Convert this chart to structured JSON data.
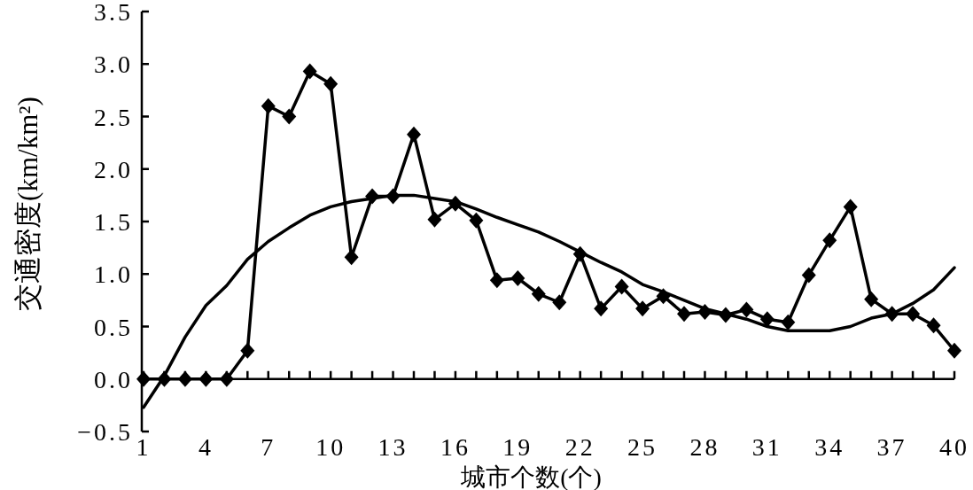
{
  "chart_data": {
    "type": "line",
    "xlabel": "城市个数(个)",
    "ylabel": "交通密度(km/km²)",
    "x": [
      1,
      2,
      3,
      4,
      5,
      6,
      7,
      8,
      9,
      10,
      11,
      12,
      13,
      14,
      15,
      16,
      17,
      18,
      19,
      20,
      21,
      22,
      23,
      24,
      25,
      26,
      27,
      28,
      29,
      30,
      31,
      32,
      33,
      34,
      35,
      36,
      37,
      38,
      39,
      40
    ],
    "xlim": [
      1,
      40
    ],
    "xticks": [
      1,
      {
        "value": 2,
        "label": null
      },
      {
        "value": 3,
        "label": null
      },
      4,
      {
        "value": 5,
        "label": null
      },
      {
        "value": 6,
        "label": null
      },
      7,
      {
        "value": 8,
        "label": null
      },
      {
        "value": 9,
        "label": null
      },
      10,
      {
        "value": 11,
        "label": null
      },
      {
        "value": 12,
        "label": null
      },
      13,
      {
        "value": 14,
        "label": null
      },
      {
        "value": 15,
        "label": null
      },
      16,
      {
        "value": 17,
        "label": null
      },
      {
        "value": 18,
        "label": null
      },
      19,
      {
        "value": 20,
        "label": null
      },
      {
        "value": 21,
        "label": null
      },
      22,
      {
        "value": 23,
        "label": null
      },
      {
        "value": 24,
        "label": null
      },
      25,
      {
        "value": 26,
        "label": null
      },
      {
        "value": 27,
        "label": null
      },
      28,
      {
        "value": 29,
        "label": null
      },
      {
        "value": 30,
        "label": null
      },
      31,
      {
        "value": 32,
        "label": null
      },
      {
        "value": 33,
        "label": null
      },
      34,
      {
        "value": 35,
        "label": null
      },
      {
        "value": 36,
        "label": null
      },
      37,
      {
        "value": 38,
        "label": null
      },
      {
        "value": 39,
        "label": null
      },
      40
    ],
    "ylim": [
      -0.5,
      3.5
    ],
    "yticks": [
      {
        "value": -0.5,
        "label": "−0.5"
      },
      {
        "value": 0,
        "label": "0.0"
      },
      0.5,
      {
        "value": 1,
        "label": "1.0"
      },
      1.5,
      {
        "value": 2,
        "label": "2.0"
      },
      2.5,
      {
        "value": 3,
        "label": "3.0"
      },
      3.5
    ],
    "grid": false,
    "line_style": "solid",
    "series": [
      {
        "color": "#000000",
        "marker": "diamond",
        "values": [
          0,
          0,
          0,
          0,
          0,
          0.27,
          2.6,
          2.5,
          2.93,
          2.81,
          1.16,
          1.74,
          1.74,
          2.33,
          1.52,
          1.67,
          1.51,
          0.94,
          0.96,
          0.81,
          0.73,
          1.19,
          0.67,
          0.88,
          0.67,
          0.79,
          0.62,
          0.64,
          0.61,
          0.66,
          0.57,
          0.54,
          0.99,
          1.32,
          1.64,
          0.76,
          0.62,
          0.62,
          0.51,
          0.27
        ]
      },
      {
        "color": "#000000",
        "marker": "none",
        "values": [
          -0.27,
          0.03,
          0.4,
          0.7,
          0.89,
          1.14,
          1.31,
          1.44,
          1.56,
          1.64,
          1.69,
          1.72,
          1.75,
          1.75,
          1.72,
          1.69,
          1.62,
          1.54,
          1.47,
          1.4,
          1.31,
          1.21,
          1.11,
          1.02,
          0.9,
          0.83,
          0.75,
          0.67,
          0.62,
          0.57,
          0.5,
          0.46,
          0.46,
          0.46,
          0.5,
          0.58,
          0.62,
          0.72,
          0.85,
          1.06
        ]
      }
    ]
  }
}
